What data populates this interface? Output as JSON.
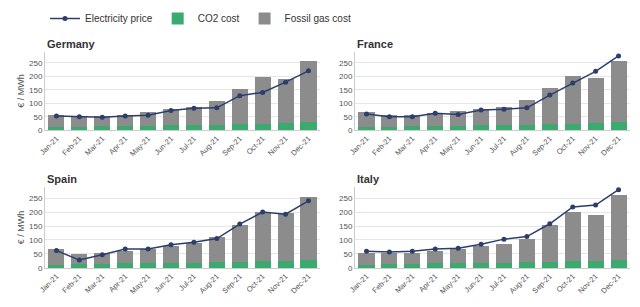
{
  "chart_data": [
    {
      "type": "bar",
      "title": "Germany",
      "y_label": "€ / MWh",
      "stacked": true,
      "grid": true,
      "legend": "top-left",
      "categories": [
        "Jan-21",
        "Feb-21",
        "Mar-21",
        "Apr-21",
        "May-21",
        "Jun-21",
        "Jul-21",
        "Aug-21",
        "Sep-21",
        "Oct-21",
        "Nov-21",
        "Dec-21"
      ],
      "series": [
        {
          "name": "Electricity price",
          "type": "line",
          "marker": "circle",
          "color": "#2c3e6e",
          "values": [
            53,
            50,
            48,
            53,
            55,
            73,
            81,
            83,
            128,
            140,
            178,
            220
          ]
        },
        {
          "name": "CO2 cost",
          "type": "bar",
          "color": "#3aaa6e",
          "values": [
            12,
            13,
            14,
            16,
            17,
            18,
            19,
            20,
            22,
            23,
            25,
            30
          ]
        },
        {
          "name": "Fossil gas cost",
          "type": "bar",
          "color": "#8c8c8c",
          "values": [
            43,
            40,
            38,
            42,
            51,
            62,
            66,
            90,
            130,
            175,
            163,
            225
          ]
        }
      ],
      "ylim": [
        0,
        290
      ],
      "yticks": [
        0,
        50,
        100,
        150,
        200,
        250
      ]
    },
    {
      "type": "bar",
      "title": "France",
      "stacked": true,
      "grid": true,
      "categories": [
        "Jan-21",
        "Feb-21",
        "Mar-21",
        "Apr-21",
        "May-21",
        "Jun-21",
        "Jul-21",
        "Aug-21",
        "Sep-21",
        "Oct-21",
        "Nov-21",
        "Dec-21"
      ],
      "series": [
        {
          "name": "Electricity price",
          "type": "line",
          "marker": "circle",
          "color": "#2c3e6e",
          "values": [
            60,
            50,
            50,
            63,
            58,
            75,
            78,
            83,
            130,
            175,
            218,
            275
          ]
        },
        {
          "name": "CO2 cost",
          "type": "bar",
          "color": "#3aaa6e",
          "values": [
            12,
            13,
            14,
            16,
            17,
            18,
            19,
            20,
            22,
            23,
            25,
            30
          ]
        },
        {
          "name": "Fossil gas cost",
          "type": "bar",
          "color": "#8c8c8c",
          "values": [
            55,
            44,
            44,
            49,
            53,
            62,
            66,
            92,
            133,
            177,
            170,
            225
          ]
        }
      ],
      "ylim": [
        0,
        290
      ],
      "yticks": [
        0,
        50,
        100,
        150,
        200,
        250
      ]
    },
    {
      "type": "bar",
      "title": "Spain",
      "y_label": "€ / MWh",
      "stacked": true,
      "grid": true,
      "categories": [
        "Jan-21",
        "Feb-21",
        "Mar-21",
        "Apr-21",
        "May-21",
        "Jun-21",
        "Jul-21",
        "Aug-21",
        "Sep-21",
        "Oct-21",
        "Nov-21",
        "Dec-21"
      ],
      "series": [
        {
          "name": "Electricity price",
          "type": "line",
          "marker": "circle",
          "color": "#2c3e6e",
          "values": [
            62,
            28,
            47,
            68,
            68,
            83,
            92,
            105,
            157,
            200,
            192,
            240
          ]
        },
        {
          "name": "CO2 cost",
          "type": "bar",
          "color": "#3aaa6e",
          "values": [
            12,
            13,
            14,
            16,
            17,
            18,
            19,
            20,
            22,
            23,
            25,
            30
          ]
        },
        {
          "name": "Fossil gas cost",
          "type": "bar",
          "color": "#8c8c8c",
          "values": [
            56,
            37,
            39,
            44,
            51,
            62,
            69,
            92,
            133,
            177,
            170,
            225
          ]
        }
      ],
      "ylim": [
        0,
        290
      ],
      "yticks": [
        0,
        50,
        100,
        150,
        200,
        250
      ]
    },
    {
      "type": "bar",
      "title": "Italy",
      "stacked": true,
      "grid": true,
      "categories": [
        "Jan-21",
        "Feb-21",
        "Mar-21",
        "Apr-21",
        "May-21",
        "Jun-21",
        "Jul-21",
        "Aug-21",
        "Sep-21",
        "Oct-21",
        "Nov-21",
        "Dec-21"
      ],
      "series": [
        {
          "name": "Electricity price",
          "type": "line",
          "marker": "circle",
          "color": "#2c3e6e",
          "values": [
            60,
            57,
            60,
            68,
            70,
            85,
            103,
            112,
            158,
            218,
            225,
            280
          ]
        },
        {
          "name": "CO2 cost",
          "type": "bar",
          "color": "#3aaa6e",
          "values": [
            12,
            13,
            14,
            16,
            17,
            18,
            19,
            20,
            22,
            23,
            25,
            30
          ]
        },
        {
          "name": "Fossil gas cost",
          "type": "bar",
          "color": "#8c8c8c",
          "values": [
            43,
            39,
            38,
            44,
            51,
            60,
            66,
            85,
            133,
            177,
            165,
            230
          ]
        }
      ],
      "ylim": [
        0,
        290
      ],
      "yticks": [
        0,
        50,
        100,
        150,
        200,
        250
      ]
    }
  ]
}
